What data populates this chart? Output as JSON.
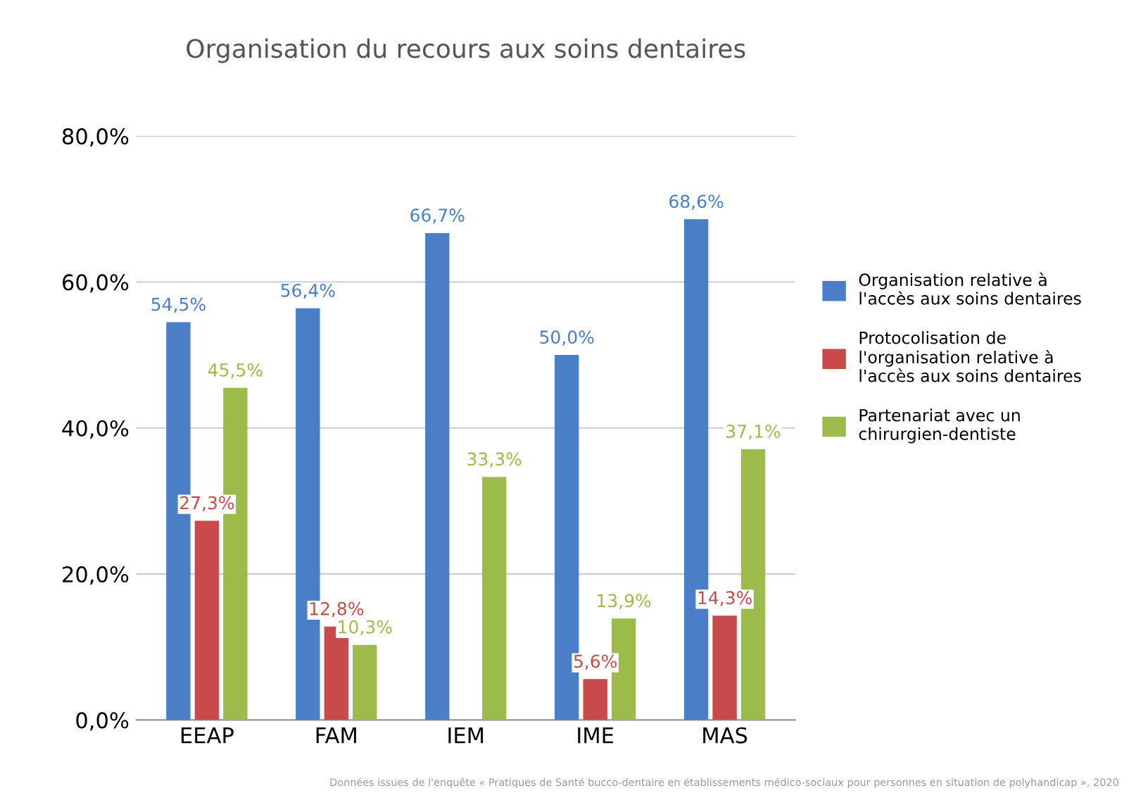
{
  "chart_data": {
    "type": "bar",
    "title": "Organisation du recours aux soins dentaires",
    "categories": [
      "EEAP",
      "FAM",
      "IEM",
      "IME",
      "MAS"
    ],
    "series": [
      {
        "name": "Organisation relative à l'accès aux soins dentaires",
        "color": "#4a7ec6",
        "values": [
          54.5,
          56.4,
          66.7,
          50.0,
          68.6
        ],
        "value_labels": [
          "54,5%",
          "56,4%",
          "66,7%",
          "50,0%",
          "68,6%"
        ]
      },
      {
        "name": "Protocolisation de l'organisation relative à l'accès aux soins dentaires",
        "color": "#c94a4a",
        "values": [
          27.3,
          12.8,
          null,
          5.6,
          14.3
        ],
        "value_labels": [
          "27,3%",
          "12,8%",
          null,
          "5,6%",
          "14,3%"
        ]
      },
      {
        "name": "Partenariat avec un chirurgien-dentiste",
        "color": "#9cbb4a",
        "values": [
          45.5,
          10.3,
          33.3,
          13.9,
          37.1
        ],
        "value_labels": [
          "45,5%",
          "10,3%",
          "33,3%",
          "13,9%",
          "37,1%"
        ]
      }
    ],
    "ylim": [
      0,
      80
    ],
    "yticks": [
      {
        "value": 0,
        "label": "0,0%"
      },
      {
        "value": 20,
        "label": "20,0%"
      },
      {
        "value": 40,
        "label": "40,0%"
      },
      {
        "value": 60,
        "label": "60,0%"
      },
      {
        "value": 80,
        "label": "80,0%"
      }
    ],
    "grid": "y",
    "legend": "right",
    "annotations": [
      "Données issues de l'enquête « Pratiques de Santé bucco-dentaire en établissements médico-sociaux pour personnes en situation de polyhandicap », 2020"
    ]
  }
}
